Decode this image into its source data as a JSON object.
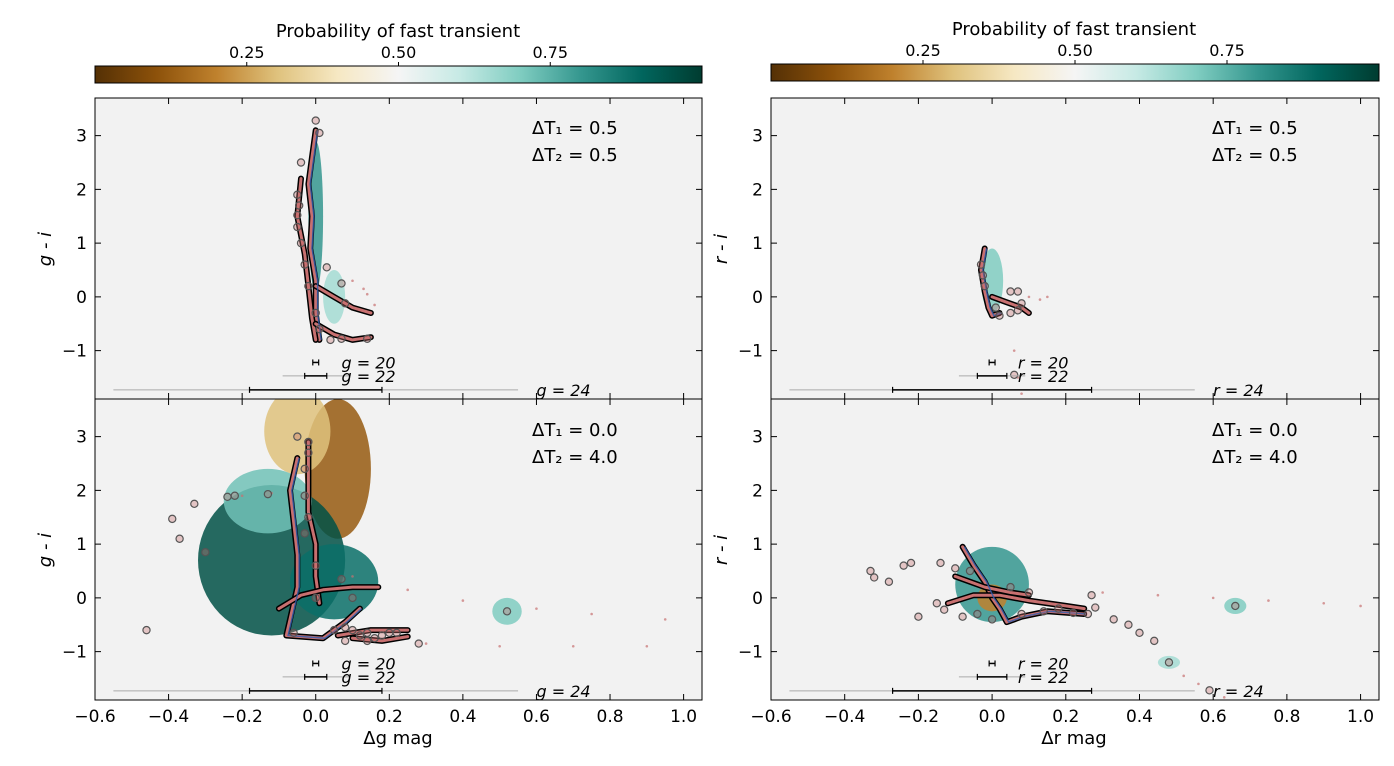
{
  "colors": {
    "background": "#f2f2f2",
    "cmap": [
      "#543005",
      "#8c510a",
      "#bf812d",
      "#dfc27d",
      "#f6e8c3",
      "#f5f5f5",
      "#c7eae5",
      "#80cdc1",
      "#35978f",
      "#01665e",
      "#003c30"
    ],
    "track": "#c87070",
    "track_outline": "#000000",
    "marker_edge": "#555555",
    "bright_track": "#2f5fb0"
  },
  "chart_data": [
    {
      "type": "colorbar",
      "panel": "left",
      "title": "Probability of fast transient",
      "ticks": [
        0.25,
        0.5,
        0.75
      ],
      "tick_labels": [
        "0.25",
        "0.50",
        "0.75"
      ],
      "range": [
        0.0,
        1.0
      ]
    },
    {
      "type": "colorbar",
      "panel": "right",
      "title": "Probability of fast transient",
      "ticks": [
        0.25,
        0.5,
        0.75
      ],
      "tick_labels": [
        "0.25",
        "0.50",
        "0.75"
      ],
      "range": [
        0.0,
        1.0
      ]
    },
    {
      "type": "scatter",
      "panel": "top-left",
      "xlabel": "",
      "ylabel": "g - i",
      "xlim": [
        -0.6,
        1.05
      ],
      "ylim": [
        -1.9,
        3.7
      ],
      "yticks": [
        -1,
        0,
        1,
        2,
        3
      ],
      "ytick_labels": [
        "−1",
        "0",
        "1",
        "2",
        "3"
      ],
      "annotation": [
        "ΔT₁ = 0.5",
        "ΔT₂ = 0.5"
      ],
      "error_bars": [
        {
          "label": "g = 20",
          "half_width": 0.008,
          "y": -1.22
        },
        {
          "label": "g = 22",
          "half_width": 0.03,
          "y": -1.47
        },
        {
          "label": "g = 24",
          "half_width": 0.18,
          "y": -1.73
        }
      ],
      "heatmap": [
        {
          "x": 0.0,
          "y": 1.5,
          "dx": 0.02,
          "dy": 1.4,
          "p": 0.8
        },
        {
          "x": 0.05,
          "y": 0.0,
          "dx": 0.03,
          "dy": 0.5,
          "p": 0.65
        }
      ],
      "tracks": [
        [
          [
            0.0,
            3.1
          ],
          [
            -0.01,
            2.6
          ],
          [
            -0.02,
            2.1
          ],
          [
            -0.01,
            1.5
          ],
          [
            -0.015,
            0.9
          ],
          [
            0.0,
            0.3
          ],
          [
            0.0,
            -0.3
          ],
          [
            0.01,
            -0.8
          ]
        ],
        [
          [
            -0.04,
            2.2
          ],
          [
            -0.05,
            1.5
          ],
          [
            -0.03,
            0.8
          ],
          [
            -0.02,
            0.2
          ],
          [
            -0.01,
            -0.4
          ],
          [
            0.0,
            -0.8
          ]
        ],
        [
          [
            0.0,
            -0.5
          ],
          [
            0.05,
            -0.7
          ],
          [
            0.1,
            -0.8
          ],
          [
            0.15,
            -0.75
          ]
        ],
        [
          [
            0.0,
            0.2
          ],
          [
            0.05,
            0.0
          ],
          [
            0.1,
            -0.2
          ],
          [
            0.15,
            -0.3
          ]
        ]
      ],
      "markers": [
        [
          0.0,
          3.28
        ],
        [
          0.01,
          3.05
        ],
        [
          -0.04,
          2.5
        ],
        [
          -0.05,
          1.9
        ],
        [
          -0.045,
          1.7
        ],
        [
          -0.05,
          1.52
        ],
        [
          -0.05,
          1.3
        ],
        [
          -0.04,
          1.0
        ],
        [
          -0.03,
          0.6
        ],
        [
          -0.02,
          0.2
        ],
        [
          0.0,
          -0.3
        ],
        [
          0.01,
          -0.6
        ],
        [
          0.04,
          -0.8
        ],
        [
          0.07,
          -0.78
        ],
        [
          0.14,
          -0.78
        ],
        [
          0.07,
          0.25
        ],
        [
          0.08,
          -0.12
        ],
        [
          0.03,
          0.55
        ]
      ],
      "dotted": [
        [
          0.1,
          0.3
        ],
        [
          0.13,
          0.15
        ],
        [
          0.14,
          0.05
        ],
        [
          0.16,
          -0.15
        ]
      ]
    },
    {
      "type": "scatter",
      "panel": "top-right",
      "xlabel": "",
      "ylabel": "r - i",
      "xlim": [
        -0.6,
        1.05
      ],
      "ylim": [
        -1.9,
        3.7
      ],
      "yticks": [
        -1,
        0,
        1,
        2,
        3
      ],
      "ytick_labels": [
        "−1",
        "0",
        "1",
        "2",
        "3"
      ],
      "annotation": [
        "ΔT₁ = 0.5",
        "ΔT₂ = 0.5"
      ],
      "error_bars": [
        {
          "label": "r = 20",
          "half_width": 0.008,
          "y": -1.22
        },
        {
          "label": "r = 22",
          "half_width": 0.04,
          "y": -1.47
        },
        {
          "label": "r = 24",
          "half_width": 0.27,
          "y": -1.73
        }
      ],
      "heatmap": [
        {
          "x": 0.0,
          "y": 0.3,
          "dx": 0.03,
          "dy": 0.6,
          "p": 0.7
        }
      ],
      "tracks": [
        [
          [
            -0.02,
            0.9
          ],
          [
            -0.03,
            0.5
          ],
          [
            -0.02,
            0.1
          ],
          [
            -0.01,
            -0.2
          ],
          [
            0.0,
            -0.35
          ],
          [
            0.02,
            -0.3
          ]
        ],
        [
          [
            0.0,
            0.0
          ],
          [
            0.04,
            -0.1
          ],
          [
            0.08,
            -0.2
          ],
          [
            0.1,
            -0.3
          ]
        ]
      ],
      "markers": [
        [
          -0.03,
          0.6
        ],
        [
          -0.025,
          0.4
        ],
        [
          -0.02,
          0.2
        ],
        [
          0.01,
          -0.2
        ],
        [
          0.02,
          -0.35
        ],
        [
          0.05,
          -0.3
        ],
        [
          0.08,
          -0.12
        ],
        [
          0.05,
          0.1
        ],
        [
          0.07,
          0.1
        ],
        [
          0.07,
          -0.25
        ],
        [
          0.06,
          -1.45
        ]
      ],
      "dotted": [
        [
          0.1,
          0.0
        ],
        [
          0.13,
          -0.05
        ],
        [
          0.15,
          0.0
        ],
        [
          0.06,
          -1.0
        ],
        [
          0.07,
          -1.5
        ],
        [
          0.08,
          -1.8
        ]
      ]
    },
    {
      "type": "scatter",
      "panel": "bottom-left",
      "xlabel": "Δg mag",
      "ylabel": "g - i",
      "xlim": [
        -0.6,
        1.05
      ],
      "ylim": [
        -1.9,
        3.7
      ],
      "xticks": [
        -0.6,
        -0.4,
        -0.2,
        0.0,
        0.2,
        0.4,
        0.6,
        0.8,
        1.0
      ],
      "xtick_labels": [
        "−0.6",
        "−0.4",
        "−0.2",
        "0.0",
        "0.2",
        "0.4",
        "0.6",
        "0.8",
        "1.0"
      ],
      "yticks": [
        -1,
        0,
        1,
        2,
        3
      ],
      "ytick_labels": [
        "−1",
        "0",
        "1",
        "2",
        "3"
      ],
      "annotation": [
        "ΔT₁ = 0.0",
        "ΔT₂ = 4.0"
      ],
      "error_bars": [
        {
          "label": "g = 20",
          "half_width": 0.008,
          "y": -1.22
        },
        {
          "label": "g = 22",
          "half_width": 0.03,
          "y": -1.47
        },
        {
          "label": "g = 24",
          "half_width": 0.18,
          "y": -1.73
        }
      ],
      "heatmap": [
        {
          "x": 0.06,
          "y": 2.4,
          "dx": 0.09,
          "dy": 1.3,
          "p": 0.12
        },
        {
          "x": -0.05,
          "y": 3.1,
          "dx": 0.09,
          "dy": 0.8,
          "p": 0.3
        },
        {
          "x": -0.12,
          "y": 0.7,
          "dx": 0.2,
          "dy": 1.4,
          "p": 0.95
        },
        {
          "x": 0.05,
          "y": 0.3,
          "dx": 0.12,
          "dy": 0.7,
          "p": 0.88
        },
        {
          "x": -0.13,
          "y": 1.8,
          "dx": 0.12,
          "dy": 0.6,
          "p": 0.72
        },
        {
          "x": 0.52,
          "y": -0.25,
          "dx": 0.04,
          "dy": 0.25,
          "p": 0.7
        }
      ],
      "tracks": [
        [
          [
            -0.05,
            2.6
          ],
          [
            -0.07,
            2.0
          ],
          [
            -0.06,
            1.4
          ],
          [
            -0.05,
            0.8
          ],
          [
            -0.05,
            0.2
          ],
          [
            -0.07,
            -0.4
          ],
          [
            -0.08,
            -0.7
          ],
          [
            0.02,
            -0.75
          ],
          [
            0.08,
            -0.45
          ],
          [
            0.12,
            -0.2
          ]
        ],
        [
          [
            -0.02,
            2.9
          ],
          [
            -0.02,
            2.2
          ],
          [
            -0.02,
            1.6
          ],
          [
            0.0,
            1.0
          ],
          [
            0.0,
            0.4
          ],
          [
            0.01,
            -0.1
          ]
        ],
        [
          [
            -0.1,
            -0.2
          ],
          [
            -0.04,
            0.05
          ],
          [
            0.02,
            0.15
          ],
          [
            0.1,
            0.2
          ],
          [
            0.17,
            0.2
          ]
        ],
        [
          [
            0.06,
            -0.7
          ],
          [
            0.15,
            -0.6
          ],
          [
            0.25,
            -0.6
          ]
        ],
        [
          [
            0.1,
            -0.75
          ],
          [
            0.18,
            -0.8
          ],
          [
            0.25,
            -0.72
          ]
        ]
      ],
      "markers": [
        [
          -0.05,
          3.0
        ],
        [
          -0.02,
          2.9
        ],
        [
          -0.02,
          2.7
        ],
        [
          -0.03,
          2.4
        ],
        [
          -0.03,
          1.9
        ],
        [
          -0.02,
          1.5
        ],
        [
          -0.03,
          1.2
        ],
        [
          0.0,
          0.6
        ],
        [
          0.0,
          0.0
        ],
        [
          -0.06,
          -0.65
        ],
        [
          0.05,
          -0.6
        ],
        [
          0.08,
          -0.55
        ],
        [
          0.1,
          -0.6
        ],
        [
          0.12,
          -0.7
        ],
        [
          0.14,
          -0.65
        ],
        [
          0.16,
          -0.75
        ],
        [
          0.18,
          -0.7
        ],
        [
          0.2,
          -0.65
        ],
        [
          0.22,
          -0.65
        ],
        [
          0.08,
          -0.8
        ],
        [
          0.28,
          -0.85
        ],
        [
          0.14,
          -0.8
        ],
        [
          0.07,
          0.35
        ],
        [
          0.1,
          0.0
        ],
        [
          -0.39,
          1.47
        ],
        [
          -0.37,
          1.1
        ],
        [
          -0.33,
          1.75
        ],
        [
          -0.3,
          0.85
        ],
        [
          -0.24,
          1.88
        ],
        [
          -0.22,
          1.9
        ],
        [
          -0.13,
          1.93
        ],
        [
          -0.46,
          -0.6
        ],
        [
          0.52,
          -0.25
        ]
      ],
      "dotted": [
        [
          0.1,
          0.4
        ],
        [
          0.25,
          0.15
        ],
        [
          0.4,
          -0.05
        ],
        [
          0.6,
          -0.2
        ],
        [
          0.75,
          -0.3
        ],
        [
          0.95,
          -0.4
        ],
        [
          0.3,
          -0.85
        ],
        [
          0.5,
          -0.9
        ],
        [
          0.7,
          -0.9
        ],
        [
          0.9,
          -0.9
        ],
        [
          -0.12,
          1.95
        ],
        [
          -0.2,
          1.9
        ]
      ]
    },
    {
      "type": "scatter",
      "panel": "bottom-right",
      "xlabel": "Δr mag",
      "ylabel": "r - i",
      "xlim": [
        -0.6,
        1.05
      ],
      "ylim": [
        -1.9,
        3.7
      ],
      "xticks": [
        -0.6,
        -0.4,
        -0.2,
        0.0,
        0.2,
        0.4,
        0.6,
        0.8,
        1.0
      ],
      "xtick_labels": [
        "−0.6",
        "−0.4",
        "−0.2",
        "0.0",
        "0.2",
        "0.4",
        "0.6",
        "0.8",
        "1.0"
      ],
      "yticks": [
        -1,
        0,
        1,
        2,
        3
      ],
      "ytick_labels": [
        "−1",
        "0",
        "1",
        "2",
        "3"
      ],
      "annotation": [
        "ΔT₁ = 0.0",
        "ΔT₂ = 4.0"
      ],
      "error_bars": [
        {
          "label": "r = 20",
          "half_width": 0.008,
          "y": -1.22
        },
        {
          "label": "r = 22",
          "half_width": 0.04,
          "y": -1.47
        },
        {
          "label": "r = 24",
          "half_width": 0.27,
          "y": -1.73
        }
      ],
      "heatmap": [
        {
          "x": 0.0,
          "y": 0.25,
          "dx": 0.1,
          "dy": 0.7,
          "p": 0.8
        },
        {
          "x": 0.0,
          "y": 0.0,
          "dx": 0.04,
          "dy": 0.25,
          "p": 0.2
        },
        {
          "x": 0.66,
          "y": -0.15,
          "dx": 0.03,
          "dy": 0.15,
          "p": 0.7
        },
        {
          "x": 0.48,
          "y": -1.2,
          "dx": 0.03,
          "dy": 0.12,
          "p": 0.65
        }
      ],
      "tracks": [
        [
          [
            -0.08,
            0.95
          ],
          [
            -0.05,
            0.6
          ],
          [
            -0.02,
            0.3
          ],
          [
            0.0,
            0.0
          ],
          [
            0.02,
            -0.2
          ],
          [
            0.04,
            -0.45
          ],
          [
            0.08,
            -0.35
          ],
          [
            0.15,
            -0.25
          ],
          [
            0.25,
            -0.3
          ]
        ],
        [
          [
            -0.12,
            -0.1
          ],
          [
            -0.05,
            0.05
          ],
          [
            0.02,
            0.05
          ],
          [
            0.1,
            -0.05
          ],
          [
            0.2,
            -0.15
          ],
          [
            0.25,
            -0.2
          ]
        ],
        [
          [
            -0.1,
            0.4
          ],
          [
            -0.02,
            0.2
          ],
          [
            0.05,
            0.1
          ],
          [
            0.1,
            0.05
          ]
        ]
      ],
      "markers": [
        [
          -0.33,
          0.5
        ],
        [
          -0.32,
          0.38
        ],
        [
          -0.28,
          0.3
        ],
        [
          -0.24,
          0.6
        ],
        [
          -0.22,
          0.65
        ],
        [
          -0.14,
          0.65
        ],
        [
          -0.1,
          0.55
        ],
        [
          -0.13,
          -0.22
        ],
        [
          -0.08,
          -0.35
        ],
        [
          -0.04,
          -0.3
        ],
        [
          0.0,
          -0.4
        ],
        [
          0.08,
          -0.3
        ],
        [
          0.14,
          -0.25
        ],
        [
          0.18,
          -0.2
        ],
        [
          0.22,
          -0.28
        ],
        [
          0.26,
          -0.3
        ],
        [
          0.28,
          -0.18
        ],
        [
          0.27,
          0.05
        ],
        [
          0.33,
          -0.4
        ],
        [
          0.37,
          -0.5
        ],
        [
          0.4,
          -0.65
        ],
        [
          0.44,
          -0.8
        ],
        [
          0.48,
          -1.2
        ],
        [
          0.59,
          -1.72
        ],
        [
          0.66,
          -0.15
        ],
        [
          -0.2,
          -0.35
        ],
        [
          -0.15,
          -0.1
        ],
        [
          -0.06,
          0.5
        ],
        [
          0.05,
          0.2
        ],
        [
          0.1,
          0.1
        ]
      ],
      "dotted": [
        [
          0.3,
          0.1
        ],
        [
          0.45,
          0.05
        ],
        [
          0.6,
          0.0
        ],
        [
          0.75,
          -0.05
        ],
        [
          0.9,
          -0.1
        ],
        [
          1.0,
          -0.15
        ],
        [
          0.52,
          -1.45
        ],
        [
          0.56,
          -1.6
        ],
        [
          0.63,
          -1.85
        ]
      ]
    }
  ]
}
